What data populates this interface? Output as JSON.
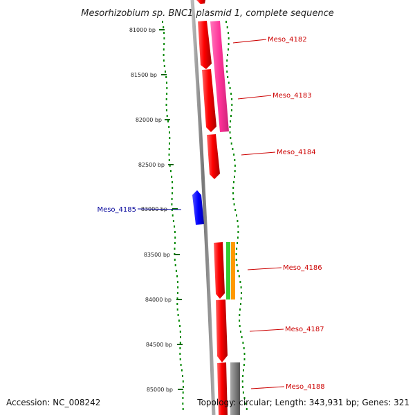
{
  "title": "Mesorhizobium sp. BNC1 plasmid 1, complete sequence",
  "accession": "Accession: NC_008242",
  "topology": "Topology: circular; Length: 343,931 bp; Genes: 321",
  "tick_labels": [
    "81000 bp",
    "81500 bp",
    "82000 bp",
    "82500 bp",
    "83000 bp",
    "83500 bp",
    "84000 bp",
    "84500 bp",
    "85000 bp"
  ],
  "genes": [
    {
      "id": "Meso_4182",
      "color": "#cc0000"
    },
    {
      "id": "Meso_4183",
      "color": "#cc0000"
    },
    {
      "id": "Meso_4184",
      "color": "#cc0000"
    },
    {
      "id": "Meso_4185",
      "color": "#000099"
    },
    {
      "id": "Meso_4186",
      "color": "#cc0000"
    },
    {
      "id": "Meso_4187",
      "color": "#cc0000"
    },
    {
      "id": "Meso_4188",
      "color": "#cc0000"
    }
  ],
  "colors": {
    "forward_cds": "#ff0000",
    "reverse_cds": "#0000ff",
    "feature_magenta": "#ff3399",
    "feature_green": "#33cc33",
    "feature_orange": "#ff9900",
    "feature_gray": "#808080",
    "backbone": "#888888",
    "gc_plot": "#008800"
  }
}
